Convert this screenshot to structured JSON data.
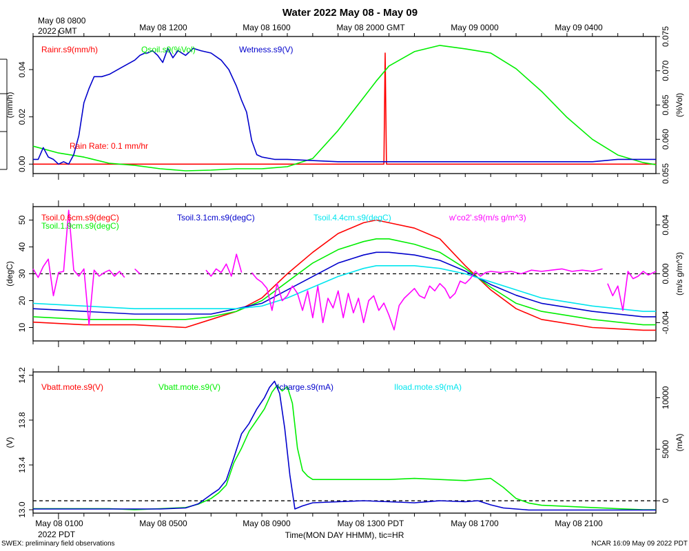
{
  "title": "Water 2022 May 08 - May 09",
  "top_axis": {
    "tz_label": [
      "May 08 0800",
      "2022 GMT"
    ],
    "ticks": [
      "May 08 1200",
      "May 08 1600",
      "May 08 2000 GMT",
      "May 09 0000",
      "May 09 0400"
    ]
  },
  "bottom_axis": {
    "tz_label": "2022 PDT",
    "ticks": [
      "May 08 0100",
      "May 08 0500",
      "May 08 0900",
      "May 08 1300 PDT",
      "May 08 1700",
      "May 08 2100"
    ],
    "xlabel": "Time(MON DAY HHMM), tic=HR"
  },
  "footer": {
    "left": "SWEX: preliminary field observations",
    "right": "NCAR 16:09 May 09 2022 PDT"
  },
  "colors": {
    "red": "#ff0000",
    "green": "#00ee00",
    "blue": "#0000cc",
    "cyan": "#00e5ee",
    "magenta": "#ff00ff",
    "black": "#000000"
  },
  "chart_data": [
    {
      "type": "line",
      "panel": "water",
      "x_unit": "hours PDT on May 08",
      "xlim": [
        0,
        24.5
      ],
      "left_axis": {
        "label": "(mm/h)",
        "lim": [
          -0.004,
          0.054
        ],
        "ticks": [
          "0.00",
          "0.02",
          "0.04"
        ],
        "tick_values": [
          0,
          0.02,
          0.04
        ]
      },
      "right_axis": {
        "label": "(%Vol)",
        "lim": [
          0.055,
          0.075
        ],
        "ticks": [
          "0.055",
          "0.060",
          "0.065",
          "0.070",
          "0.075"
        ],
        "tick_values": [
          0.055,
          0.06,
          0.065,
          0.07,
          0.075
        ]
      },
      "legend": [
        "Rainr.s9(mm/h)",
        "Qsoil.s9(%Vol)",
        "Wetness.s9(V)"
      ],
      "annotation": "Rain Rate: 0.1 mm/hr",
      "series": [
        {
          "name": "Rainr.s9(mm/h)",
          "color": "red",
          "axis": "left",
          "x": [
            0,
            13.8,
            13.85,
            13.9,
            14.0,
            14.05,
            24.5
          ],
          "y": [
            0,
            0,
            0.047,
            0.0,
            0,
            0,
            0
          ]
        },
        {
          "name": "Qsoil.s9(%Vol)",
          "color": "green",
          "axis": "right",
          "x": [
            0,
            1,
            2,
            3,
            4,
            5,
            6,
            7,
            8,
            9,
            10,
            11,
            12,
            13,
            13.5,
            14,
            15,
            16,
            17,
            18,
            19,
            20,
            21,
            22,
            23,
            24,
            24.5
          ],
          "y": [
            0.059,
            0.058,
            0.0574,
            0.0565,
            0.0562,
            0.0557,
            0.0554,
            0.0555,
            0.0557,
            0.0557,
            0.056,
            0.0572,
            0.0613,
            0.0661,
            0.0685,
            0.0707,
            0.0728,
            0.0737,
            0.0732,
            0.0726,
            0.0703,
            0.067,
            0.0632,
            0.06,
            0.0577,
            0.0566,
            0.0563
          ]
        },
        {
          "name": "Wetness.s9(V)",
          "color": "blue",
          "axis": "left",
          "x": [
            0,
            0.2,
            0.4,
            0.6,
            0.8,
            1.0,
            1.2,
            1.4,
            1.6,
            1.8,
            2.0,
            2.2,
            2.4,
            2.7,
            3.0,
            3.5,
            4.0,
            4.2,
            4.4,
            4.5,
            4.7,
            4.9,
            5.1,
            5.3,
            5.5,
            5.7,
            6.0,
            6.3,
            6.6,
            7.0,
            7.4,
            7.7,
            8.0,
            8.2,
            8.4,
            8.6,
            8.8,
            9.0,
            9.5,
            10,
            12,
            14,
            16,
            18,
            20,
            22,
            23,
            24,
            24.5
          ],
          "y": [
            0.002,
            0.002,
            0.007,
            0.003,
            0.002,
            0.0,
            0.001,
            0.0,
            0.004,
            0.012,
            0.026,
            0.032,
            0.037,
            0.037,
            0.038,
            0.041,
            0.044,
            0.046,
            0.047,
            0.047,
            0.048,
            0.046,
            0.043,
            0.049,
            0.045,
            0.048,
            0.046,
            0.049,
            0.048,
            0.047,
            0.044,
            0.04,
            0.033,
            0.027,
            0.022,
            0.01,
            0.004,
            0.003,
            0.002,
            0.002,
            0.001,
            0.001,
            0.001,
            0.001,
            0.001,
            0.001,
            0.002,
            0.002,
            0.002
          ]
        }
      ]
    },
    {
      "type": "line",
      "panel": "soil-temperature",
      "x_unit": "hours PDT on May 08",
      "xlim": [
        0,
        24.5
      ],
      "left_axis": {
        "label": "(degC)",
        "lim": [
          5,
          55
        ],
        "ticks": [
          "10",
          "20",
          "30",
          "40",
          "50"
        ],
        "tick_values": [
          10,
          20,
          30,
          40,
          50
        ]
      },
      "right_axis": {
        "label": "(m/s g/m^3)",
        "lim": [
          -0.0055,
          0.0055
        ],
        "ticks": [
          "-0.004",
          "0.000",
          "0.004"
        ],
        "tick_values": [
          -0.004,
          0,
          0.004
        ]
      },
      "legend": [
        "Tsoil.0.6cm.s9(degC)",
        "Tsoil.1.9cm.s9(degC)",
        "Tsoil.3.1cm.s9(degC)",
        "Tsoil.4.4cm.s9(degC)",
        "w'co2'.s9(m/s g/m^3)"
      ],
      "series": [
        {
          "name": "Tsoil.0.6cm.s9(degC)",
          "color": "red",
          "axis": "left",
          "x": [
            0,
            2,
            4,
            6,
            7,
            8,
            9,
            10,
            11,
            12,
            13,
            13.5,
            14,
            15,
            16,
            17,
            18,
            19,
            20,
            22,
            24,
            24.5
          ],
          "y": [
            12,
            11,
            11,
            10,
            13,
            16,
            21,
            30,
            38,
            45,
            49,
            50,
            49,
            47,
            43,
            33,
            24,
            17,
            13,
            10,
            9,
            9
          ]
        },
        {
          "name": "Tsoil.1.9cm.s9(degC)",
          "color": "green",
          "axis": "left",
          "x": [
            0,
            2,
            4,
            6,
            7,
            8,
            9,
            10,
            11,
            12,
            13,
            13.5,
            14,
            15,
            16,
            17,
            18,
            19,
            20,
            22,
            24,
            24.5
          ],
          "y": [
            14,
            13,
            13,
            13,
            14,
            16,
            20,
            27,
            34,
            39,
            42,
            43,
            43,
            41,
            38,
            32,
            25,
            19,
            16,
            13,
            11,
            11
          ]
        },
        {
          "name": "Tsoil.3.1cm.s9(degC)",
          "color": "blue",
          "axis": "left",
          "x": [
            0,
            2,
            4,
            6,
            7,
            8,
            9,
            10,
            11,
            12,
            13,
            13.5,
            14,
            15,
            16,
            17,
            18,
            19,
            20,
            22,
            24,
            24.5
          ],
          "y": [
            17,
            16,
            15,
            15,
            15,
            17,
            19,
            24,
            29,
            34,
            37,
            38,
            38,
            37,
            35,
            31,
            26,
            22,
            19,
            16,
            14,
            14
          ]
        },
        {
          "name": "Tsoil.4.4cm.s9(degC)",
          "color": "cyan",
          "axis": "left",
          "x": [
            0,
            2,
            4,
            6,
            7,
            8,
            9,
            10,
            11,
            12,
            13,
            13.5,
            14,
            15,
            16,
            17,
            18,
            19,
            20,
            22,
            24,
            24.5
          ],
          "y": [
            19,
            18,
            17,
            17,
            17,
            17,
            18,
            21,
            25,
            29,
            32,
            33,
            33,
            33,
            32,
            30,
            27,
            24,
            21,
            18,
            16,
            16
          ]
        },
        {
          "name": "w'co2'.s9(m/s g/m^3)",
          "color": "magenta",
          "axis": "right",
          "segments": [
            {
              "x": [
                0,
                0.2,
                0.4,
                0.6,
                0.8,
                1.0,
                1.2,
                1.4,
                1.6,
                1.8,
                2.0,
                2.2,
                2.4,
                2.6,
                2.8,
                3.0,
                3.2,
                3.4,
                3.6
              ],
              "y": [
                0.0004,
                -0.0003,
                0.0006,
                0.0012,
                -0.0018,
                0.0001,
                0.0002,
                0.0052,
                0.0003,
                -0.0002,
                0.0004,
                -0.0042,
                0.0003,
                -0.0002,
                0.0001,
                0.0003,
                -0.0002,
                0.0002,
                -0.0003
              ]
            },
            {
              "x": [
                4.0,
                4.2
              ],
              "y": [
                0.0004,
                0.0
              ]
            },
            {
              "x": [
                6.8,
                7.0,
                7.2,
                7.4,
                7.6,
                7.8,
                8.0,
                8.2
              ],
              "y": [
                0.0003,
                -0.0002,
                0.0004,
                0.0001,
                0.0008,
                -0.0002,
                0.0016,
                0.0001
              ]
            },
            {
              "x": [
                8.6,
                8.8,
                9.0,
                9.2,
                9.4,
                9.6,
                9.8,
                10.0,
                10.2,
                10.4,
                10.6,
                10.8,
                11.0,
                11.2,
                11.4,
                11.6,
                11.8,
                12.0,
                12.2,
                12.4,
                12.6,
                12.8,
                13.0,
                13.2,
                13.4,
                13.6,
                13.8,
                14.0,
                14.2,
                14.4,
                14.6,
                14.8,
                15.0,
                15.2,
                15.4,
                15.6,
                15.8,
                16.0,
                16.2,
                16.4,
                16.6,
                16.8,
                17.0,
                17.2,
                17.4,
                17.6,
                17.8,
                18.0,
                18.4,
                18.8,
                19.2,
                19.6,
                20.0,
                20.4,
                20.8,
                21.2,
                21.6,
                22.0,
                22.4
              ],
              "y": [
                0.0001,
                -0.0004,
                -0.0007,
                -0.0012,
                -0.003,
                -0.0008,
                -0.0022,
                -0.0018,
                -0.001,
                -0.0016,
                -0.003,
                -0.0014,
                -0.0036,
                -0.001,
                -0.004,
                -0.002,
                -0.0028,
                -0.0014,
                -0.0036,
                -0.0016,
                -0.0032,
                -0.002,
                -0.004,
                -0.0022,
                -0.0018,
                -0.003,
                -0.0024,
                -0.0034,
                -0.0046,
                -0.0026,
                -0.002,
                -0.0016,
                -0.0012,
                -0.0018,
                -0.002,
                -0.001,
                -0.0014,
                -0.0008,
                -0.0012,
                -0.002,
                -0.0016,
                -0.0006,
                -0.0008,
                -0.0004,
                0.0002,
                -0.0002,
                0.0001,
                0.0002,
                0.0001,
                0.0002,
                0.0,
                0.0003,
                0.0002,
                0.0003,
                0.0004,
                0.0002,
                0.0003,
                0.0002,
                0.0004
              ]
            },
            {
              "x": [
                22.6,
                22.8,
                23.0,
                23.2,
                23.4,
                23.6,
                23.8,
                24.0,
                24.2,
                24.5
              ],
              "y": [
                -0.0008,
                -0.0018,
                -0.001,
                -0.003,
                0.0002,
                -0.0004,
                -0.0002,
                0.0002,
                -0.0001,
                0.0002
              ]
            }
          ]
        }
      ]
    },
    {
      "type": "line",
      "panel": "power",
      "x_unit": "hours PDT on May 08",
      "xlim": [
        0,
        24.5
      ],
      "left_axis": {
        "label": "(V)",
        "lim": [
          12.97,
          14.23
        ],
        "ticks": [
          "13.0",
          "13.4",
          "13.8",
          "14.2"
        ],
        "tick_values": [
          13.0,
          13.4,
          13.8,
          14.2
        ]
      },
      "right_axis": {
        "label": "(mA)",
        "lim": [
          -1200,
          12500
        ],
        "ticks": [
          "0",
          "5000",
          "10000"
        ],
        "tick_values": [
          0,
          5000,
          10000
        ]
      },
      "legend": [
        "Vbatt.mote.s9(V)",
        "Vbatt.mote.s9(V)",
        "Icharge.s9(mA)",
        "Iload.mote.s9(mA)"
      ],
      "series": [
        {
          "name": "Vbatt.mote.s9(V)",
          "color": "red",
          "axis": "left",
          "x": [],
          "y": []
        },
        {
          "name": "Vbatt.mote.s9(V)",
          "color": "green",
          "axis": "left",
          "x": [
            0,
            1,
            2,
            3,
            4,
            5,
            6,
            6.5,
            7.0,
            7.3,
            7.6,
            7.9,
            8.2,
            8.5,
            8.8,
            9.1,
            9.4,
            9.6,
            9.8,
            10.0,
            10.2,
            10.4,
            10.6,
            10.8,
            11,
            12,
            13,
            14,
            15,
            16,
            17,
            18,
            18.5,
            19,
            19.5,
            20,
            21,
            22,
            23,
            24,
            24.5
          ],
          "y": [
            13.01,
            13.01,
            13.01,
            13.01,
            13.0,
            13.01,
            13.02,
            13.05,
            13.1,
            13.15,
            13.22,
            13.42,
            13.55,
            13.7,
            13.8,
            13.9,
            14.05,
            14.11,
            14.06,
            14.1,
            13.95,
            13.55,
            13.35,
            13.3,
            13.27,
            13.27,
            13.27,
            13.27,
            13.28,
            13.27,
            13.26,
            13.28,
            13.2,
            13.1,
            13.06,
            13.04,
            13.03,
            13.02,
            13.01,
            13.0,
            13.0
          ]
        },
        {
          "name": "Icharge.s9(mA)",
          "color": "blue",
          "axis": "right",
          "x": [
            0,
            1,
            2,
            3,
            4,
            5,
            6,
            6.5,
            7.0,
            7.3,
            7.6,
            7.9,
            8.2,
            8.5,
            8.8,
            9.1,
            9.3,
            9.5,
            9.7,
            9.9,
            10.1,
            10.3,
            10.6,
            11,
            12,
            13,
            14,
            15,
            16,
            17,
            17.5,
            18,
            18.5,
            19,
            19.5,
            20,
            21,
            22,
            23,
            24,
            24.5
          ],
          "y": [
            -800,
            -800,
            -800,
            -800,
            -800,
            -800,
            -700,
            -300,
            600,
            1100,
            2000,
            4200,
            6500,
            7500,
            8900,
            10000,
            11000,
            11600,
            10400,
            7000,
            2500,
            -800,
            -500,
            -200,
            -100,
            0,
            -100,
            -200,
            0,
            -100,
            0,
            -400,
            -700,
            -800,
            -900,
            -900,
            -900,
            -900,
            -900,
            -900,
            -900
          ]
        },
        {
          "name": "Iload.mote.s9(mA)",
          "color": "cyan",
          "axis": "right",
          "x": [],
          "y": []
        }
      ]
    }
  ]
}
